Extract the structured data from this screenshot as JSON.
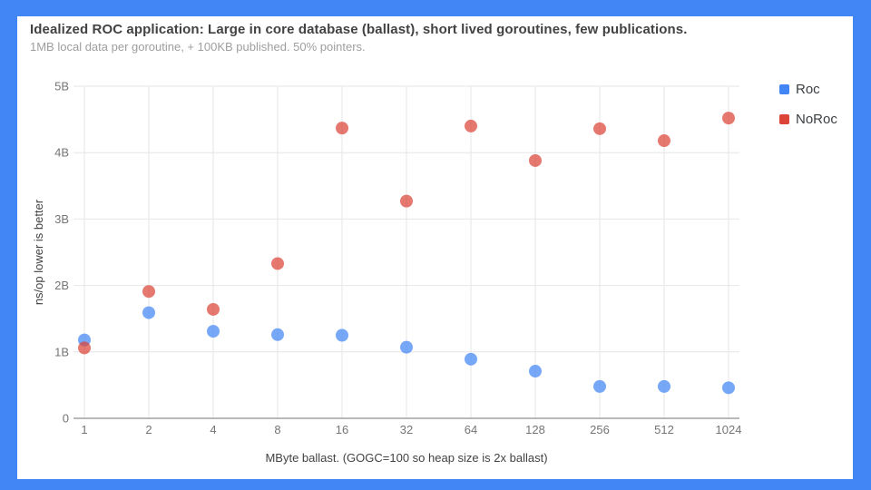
{
  "frame": {
    "color": "#4285f4"
  },
  "header": {
    "title": "Idealized ROC application: Large in core database (ballast), short lived goroutines, few publications.",
    "subtitle": "1MB local data per goroutine, + 100KB published. 50% pointers."
  },
  "chart_data": {
    "type": "scatter",
    "title": "Idealized ROC application: Large in core database (ballast), short lived goroutines, few publications.",
    "subtitle": "1MB local data per goroutine, + 100KB published. 50% pointers.",
    "xlabel": "MByte ballast. (GOGC=100 so heap size is 2x ballast)",
    "ylabel": "ns/op lower is better",
    "categories": [
      "1",
      "2",
      "4",
      "8",
      "16",
      "32",
      "64",
      "128",
      "256",
      "512",
      "1024"
    ],
    "yticks": [
      "0",
      "1B",
      "2B",
      "3B",
      "4B",
      "5B"
    ],
    "ylim_billions": [
      0,
      5
    ],
    "unit_note": "values in billions of ns/op",
    "grid": true,
    "legend_position": "right",
    "series": [
      {
        "name": "Roc",
        "color": "#4285f4",
        "values_billions": [
          1.18,
          1.59,
          1.31,
          1.26,
          1.25,
          1.07,
          0.89,
          0.71,
          0.48,
          0.48,
          0.46
        ]
      },
      {
        "name": "NoRoc",
        "color": "#db4437",
        "values_billions": [
          1.06,
          1.91,
          1.64,
          2.33,
          4.37,
          3.27,
          4.4,
          3.88,
          4.36,
          4.18,
          4.52
        ]
      }
    ],
    "style": {
      "gridline_color": "#e6e6e6",
      "axis_line_color": "#757575",
      "tick_label_color": "#757575",
      "point_opacity": 0.72
    }
  }
}
